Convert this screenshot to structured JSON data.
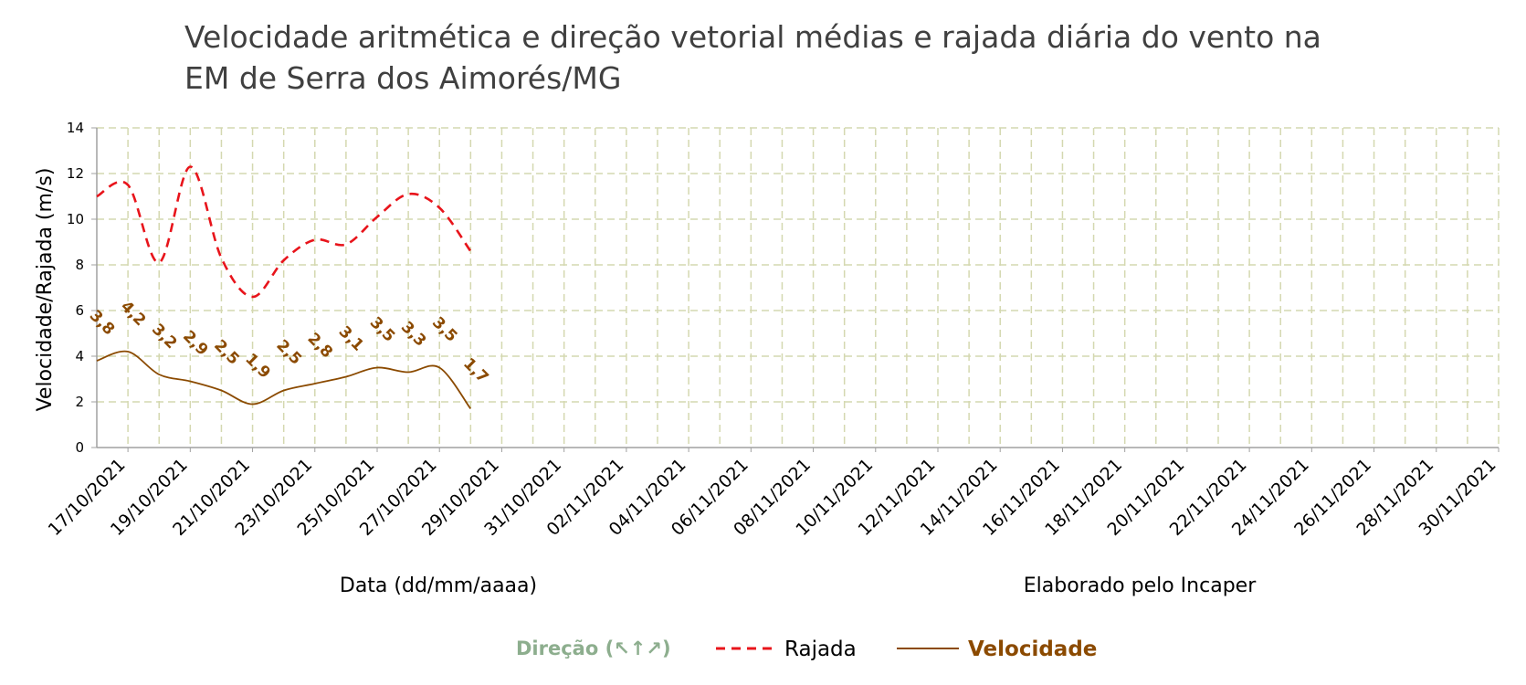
{
  "colors": {
    "rajada": "#E8141B",
    "velocidade": "#8B4A00",
    "direcao": "#8DAE8E",
    "grid": "#D4D8B0",
    "axis": "#A0A0A0",
    "title": "#404040"
  },
  "chart_data": {
    "type": "line",
    "title_lines": [
      "Velocidade aritmética e direção vetorial médias e rajada diária do vento na",
      "EM de Serra dos Aimorés/MG"
    ],
    "xlabel": "Data (dd/mm/aaaa)",
    "ylabel": "Velocidade/Rajada (m/s)",
    "credit": "Elaborado pelo Incaper",
    "ylim": [
      0,
      14
    ],
    "yticks": [
      "0",
      "2",
      "4",
      "6",
      "8",
      "10",
      "12",
      "14"
    ],
    "x_range": [
      "16/10/2021",
      "30/11/2021"
    ],
    "xtick_labels": [
      "17/10/2021",
      "19/10/2021",
      "21/10/2021",
      "23/10/2021",
      "25/10/2021",
      "27/10/2021",
      "29/10/2021",
      "31/10/2021",
      "02/11/2021",
      "04/11/2021",
      "06/11/2021",
      "08/11/2021",
      "10/11/2021",
      "12/11/2021",
      "14/11/2021",
      "16/11/2021",
      "18/11/2021",
      "20/11/2021",
      "22/11/2021",
      "24/11/2021",
      "26/11/2021",
      "28/11/2021",
      "30/11/2021"
    ],
    "grid": true,
    "legend_position": "bottom",
    "legend": {
      "direcao": "Direção (↖↑↗)",
      "rajada": "Rajada",
      "velocidade": "Velocidade"
    },
    "series": [
      {
        "name": "Rajada",
        "style": "dashed",
        "x": [
          "16/10/2021",
          "17/10/2021",
          "18/10/2021",
          "19/10/2021",
          "20/10/2021",
          "21/10/2021",
          "22/10/2021",
          "23/10/2021",
          "24/10/2021",
          "25/10/2021",
          "26/10/2021",
          "27/10/2021",
          "28/10/2021",
          "29/10/2021"
        ],
        "values": [
          11.0,
          11.5,
          8.1,
          12.3,
          8.3,
          6.6,
          8.2,
          9.1,
          8.9,
          10.1,
          11.1,
          10.5,
          8.6,
          null
        ]
      },
      {
        "name": "Velocidade",
        "style": "solid",
        "x": [
          "16/10/2021",
          "17/10/2021",
          "18/10/2021",
          "19/10/2021",
          "20/10/2021",
          "21/10/2021",
          "22/10/2021",
          "23/10/2021",
          "24/10/2021",
          "25/10/2021",
          "26/10/2021",
          "27/10/2021",
          "28/10/2021"
        ],
        "values": [
          3.8,
          4.2,
          3.2,
          2.9,
          2.5,
          1.9,
          2.5,
          2.8,
          3.1,
          3.5,
          3.3,
          3.5,
          1.7
        ],
        "data_labels": [
          "3,8",
          "4,2",
          "3,2",
          "2,9",
          "2,5",
          "1,9",
          "2,5",
          "2,8",
          "3,1",
          "3,5",
          "3,3",
          "3,5",
          "1,7"
        ]
      }
    ]
  }
}
